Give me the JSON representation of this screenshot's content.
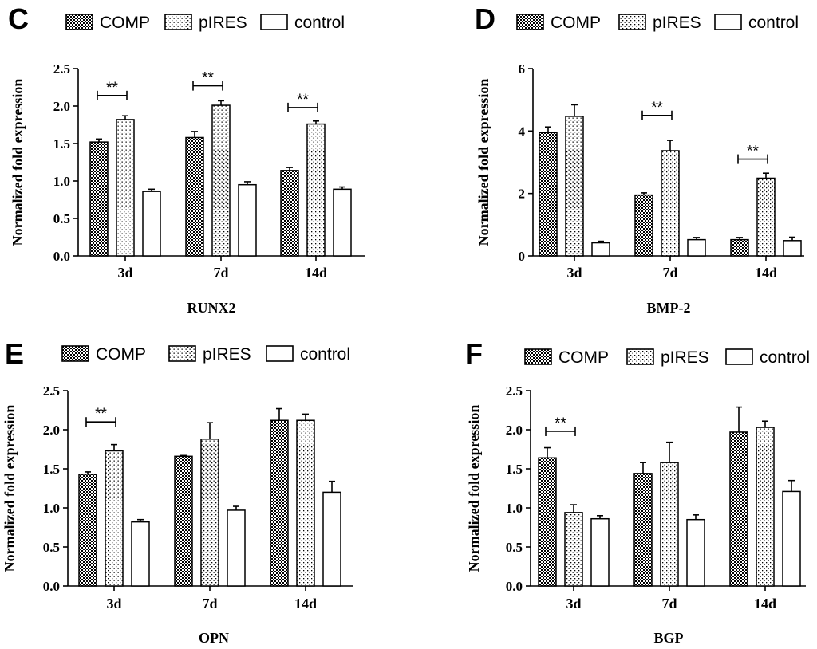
{
  "figure": {
    "legend": [
      "COMP",
      "pIRES",
      "control"
    ],
    "ylabel": "Normalized fold expression"
  },
  "chart_data": [
    {
      "type": "bar",
      "panel": "C",
      "title": "RUNX2",
      "ylabel": "Normalized fold expression",
      "categories": [
        "3d",
        "7d",
        "14d"
      ],
      "ylim": [
        0,
        2.5
      ],
      "yticks": [
        0.0,
        0.5,
        1.0,
        1.5,
        2.0,
        2.5
      ],
      "tick_labels": [
        "0.0",
        "0.5",
        "1.0",
        "1.5",
        "2.0",
        "2.5"
      ],
      "series": [
        {
          "name": "COMP",
          "values": [
            1.52,
            1.58,
            1.14
          ],
          "errors": [
            0.04,
            0.08,
            0.04
          ]
        },
        {
          "name": "pIRES",
          "values": [
            1.82,
            2.01,
            1.76
          ],
          "errors": [
            0.05,
            0.06,
            0.04
          ]
        },
        {
          "name": "control",
          "values": [
            0.86,
            0.95,
            0.89
          ],
          "errors": [
            0.03,
            0.04,
            0.03
          ]
        }
      ],
      "significance": [
        {
          "category": "3d",
          "from": "COMP",
          "to": "pIRES",
          "label": "**",
          "y": 2.14
        },
        {
          "category": "7d",
          "from": "COMP",
          "to": "pIRES",
          "label": "**",
          "y": 2.27
        },
        {
          "category": "14d",
          "from": "COMP",
          "to": "pIRES",
          "label": "**",
          "y": 1.98
        }
      ]
    },
    {
      "type": "bar",
      "panel": "D",
      "title": "BMP-2",
      "ylabel": "Normalized fold expression",
      "categories": [
        "3d",
        "7d",
        "14d"
      ],
      "ylim": [
        0,
        6
      ],
      "yticks": [
        0,
        2,
        4,
        6
      ],
      "tick_labels": [
        "0",
        "2",
        "4",
        "6"
      ],
      "series": [
        {
          "name": "COMP",
          "values": [
            3.95,
            1.95,
            0.52
          ],
          "errors": [
            0.18,
            0.07,
            0.07
          ]
        },
        {
          "name": "pIRES",
          "values": [
            4.47,
            3.37,
            2.49
          ],
          "errors": [
            0.37,
            0.33,
            0.16
          ]
        },
        {
          "name": "control",
          "values": [
            0.42,
            0.52,
            0.49
          ],
          "errors": [
            0.05,
            0.07,
            0.11
          ]
        }
      ],
      "significance": [
        {
          "category": "7d",
          "from": "COMP",
          "to": "pIRES",
          "label": "**",
          "y": 4.5
        },
        {
          "category": "14d",
          "from": "COMP",
          "to": "pIRES",
          "label": "**",
          "y": 3.1
        }
      ]
    },
    {
      "type": "bar",
      "panel": "E",
      "title": "OPN",
      "ylabel": "Normalized fold expression",
      "categories": [
        "3d",
        "7d",
        "14d"
      ],
      "ylim": [
        0,
        2.5
      ],
      "yticks": [
        0.0,
        0.5,
        1.0,
        1.5,
        2.0,
        2.5
      ],
      "tick_labels": [
        "0.0",
        "0.5",
        "1.0",
        "1.5",
        "2.0",
        "2.5"
      ],
      "series": [
        {
          "name": "COMP",
          "values": [
            1.43,
            1.66,
            2.12
          ],
          "errors": [
            0.03,
            0.01,
            0.15
          ]
        },
        {
          "name": "pIRES",
          "values": [
            1.73,
            1.88,
            2.12
          ],
          "errors": [
            0.08,
            0.21,
            0.08
          ]
        },
        {
          "name": "control",
          "values": [
            0.82,
            0.97,
            1.2
          ],
          "errors": [
            0.03,
            0.05,
            0.14
          ]
        }
      ],
      "significance": [
        {
          "category": "3d",
          "from": "COMP",
          "to": "pIRES",
          "label": "**",
          "y": 2.1
        }
      ]
    },
    {
      "type": "bar",
      "panel": "F",
      "title": "BGP",
      "ylabel": "Normalized fold expression",
      "categories": [
        "3d",
        "7d",
        "14d"
      ],
      "ylim": [
        0,
        2.5
      ],
      "yticks": [
        0.0,
        0.5,
        1.0,
        1.5,
        2.0,
        2.5
      ],
      "tick_labels": [
        "0.0",
        "0.5",
        "1.0",
        "1.5",
        "2.0",
        "2.5"
      ],
      "series": [
        {
          "name": "COMP",
          "values": [
            1.64,
            1.44,
            1.97
          ],
          "errors": [
            0.13,
            0.14,
            0.32
          ]
        },
        {
          "name": "pIRES",
          "values": [
            0.94,
            1.58,
            2.03
          ],
          "errors": [
            0.1,
            0.26,
            0.08
          ]
        },
        {
          "name": "control",
          "values": [
            0.86,
            0.85,
            1.21
          ],
          "errors": [
            0.04,
            0.06,
            0.14
          ]
        }
      ],
      "significance": [
        {
          "category": "3d",
          "from": "COMP",
          "to": "pIRES",
          "label": "**",
          "y": 1.98
        }
      ]
    }
  ]
}
